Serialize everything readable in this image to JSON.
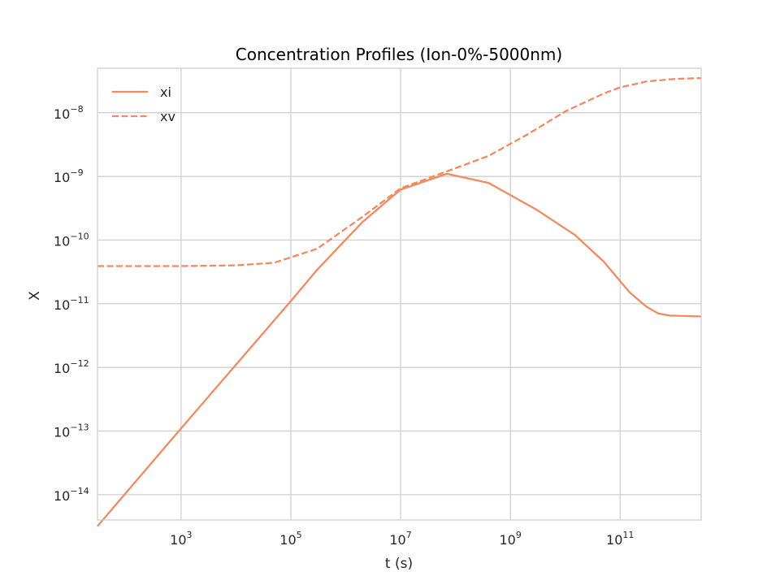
{
  "chart_data": {
    "type": "line",
    "title": "Concentration Profiles (Ion-0%-5000nm)",
    "xlabel": "t (s)",
    "ylabel": "X",
    "x_scale": "log",
    "y_scale": "log",
    "xlim": [
      30,
      3000000000000.0
    ],
    "ylim": [
      4e-15,
      5e-08
    ],
    "grid": true,
    "legend_position": "upper left",
    "colors": {
      "series": "#f4895e",
      "grid": "#cccccc",
      "frame": "#cccccc"
    },
    "x_ticks": [
      {
        "value": 1000,
        "base": "10",
        "exp": "3"
      },
      {
        "value": 100000,
        "base": "10",
        "exp": "5"
      },
      {
        "value": 10000000,
        "base": "10",
        "exp": "7"
      },
      {
        "value": 1000000000,
        "base": "10",
        "exp": "9"
      },
      {
        "value": 100000000000,
        "base": "10",
        "exp": "11"
      }
    ],
    "y_ticks": [
      {
        "value": 1e-08,
        "base": "10",
        "exp": "−8"
      },
      {
        "value": 1e-09,
        "base": "10",
        "exp": "−9"
      },
      {
        "value": 1e-10,
        "base": "10",
        "exp": "−10"
      },
      {
        "value": 1e-11,
        "base": "10",
        "exp": "−11"
      },
      {
        "value": 1e-12,
        "base": "10",
        "exp": "−12"
      },
      {
        "value": 1e-13,
        "base": "10",
        "exp": "−13"
      },
      {
        "value": 1e-14,
        "base": "10",
        "exp": "−14"
      }
    ],
    "series": [
      {
        "name": "xi",
        "dash": "solid",
        "points": [
          [
            30,
            3.2e-15
          ],
          [
            1000,
            1.1e-13
          ],
          [
            100000,
            1.1e-11
          ],
          [
            300000,
            3.4e-11
          ],
          [
            2000000,
            1.9e-10
          ],
          [
            10000000,
            6.2e-10
          ],
          [
            70000000,
            1.1e-09
          ],
          [
            400000000,
            7.9e-10
          ],
          [
            3000000000,
            3e-10
          ],
          [
            15000000000,
            1.2e-10
          ],
          [
            50000000000,
            4.6e-11
          ],
          [
            150000000000,
            1.5e-11
          ],
          [
            300000000000,
            9e-12
          ],
          [
            500000000000,
            7e-12
          ],
          [
            800000000000,
            6.5e-12
          ],
          [
            3000000000000,
            6.3e-12
          ]
        ]
      },
      {
        "name": "xv",
        "dash": "dashed",
        "points": [
          [
            30,
            3.9e-11
          ],
          [
            1000,
            3.9e-11
          ],
          [
            10000,
            4e-11
          ],
          [
            50000,
            4.4e-11
          ],
          [
            300000,
            7.3e-11
          ],
          [
            2000000,
            2.3e-10
          ],
          [
            10000000,
            6.5e-10
          ],
          [
            70000000,
            1.2e-09
          ],
          [
            400000000,
            2.1e-09
          ],
          [
            2000000000,
            4.5e-09
          ],
          [
            10000000000,
            1.05e-08
          ],
          [
            50000000000,
            2e-08
          ],
          [
            100000000000,
            2.5e-08
          ],
          [
            300000000000,
            3.1e-08
          ],
          [
            1000000000000,
            3.4e-08
          ],
          [
            3000000000000,
            3.5e-08
          ]
        ]
      }
    ]
  }
}
